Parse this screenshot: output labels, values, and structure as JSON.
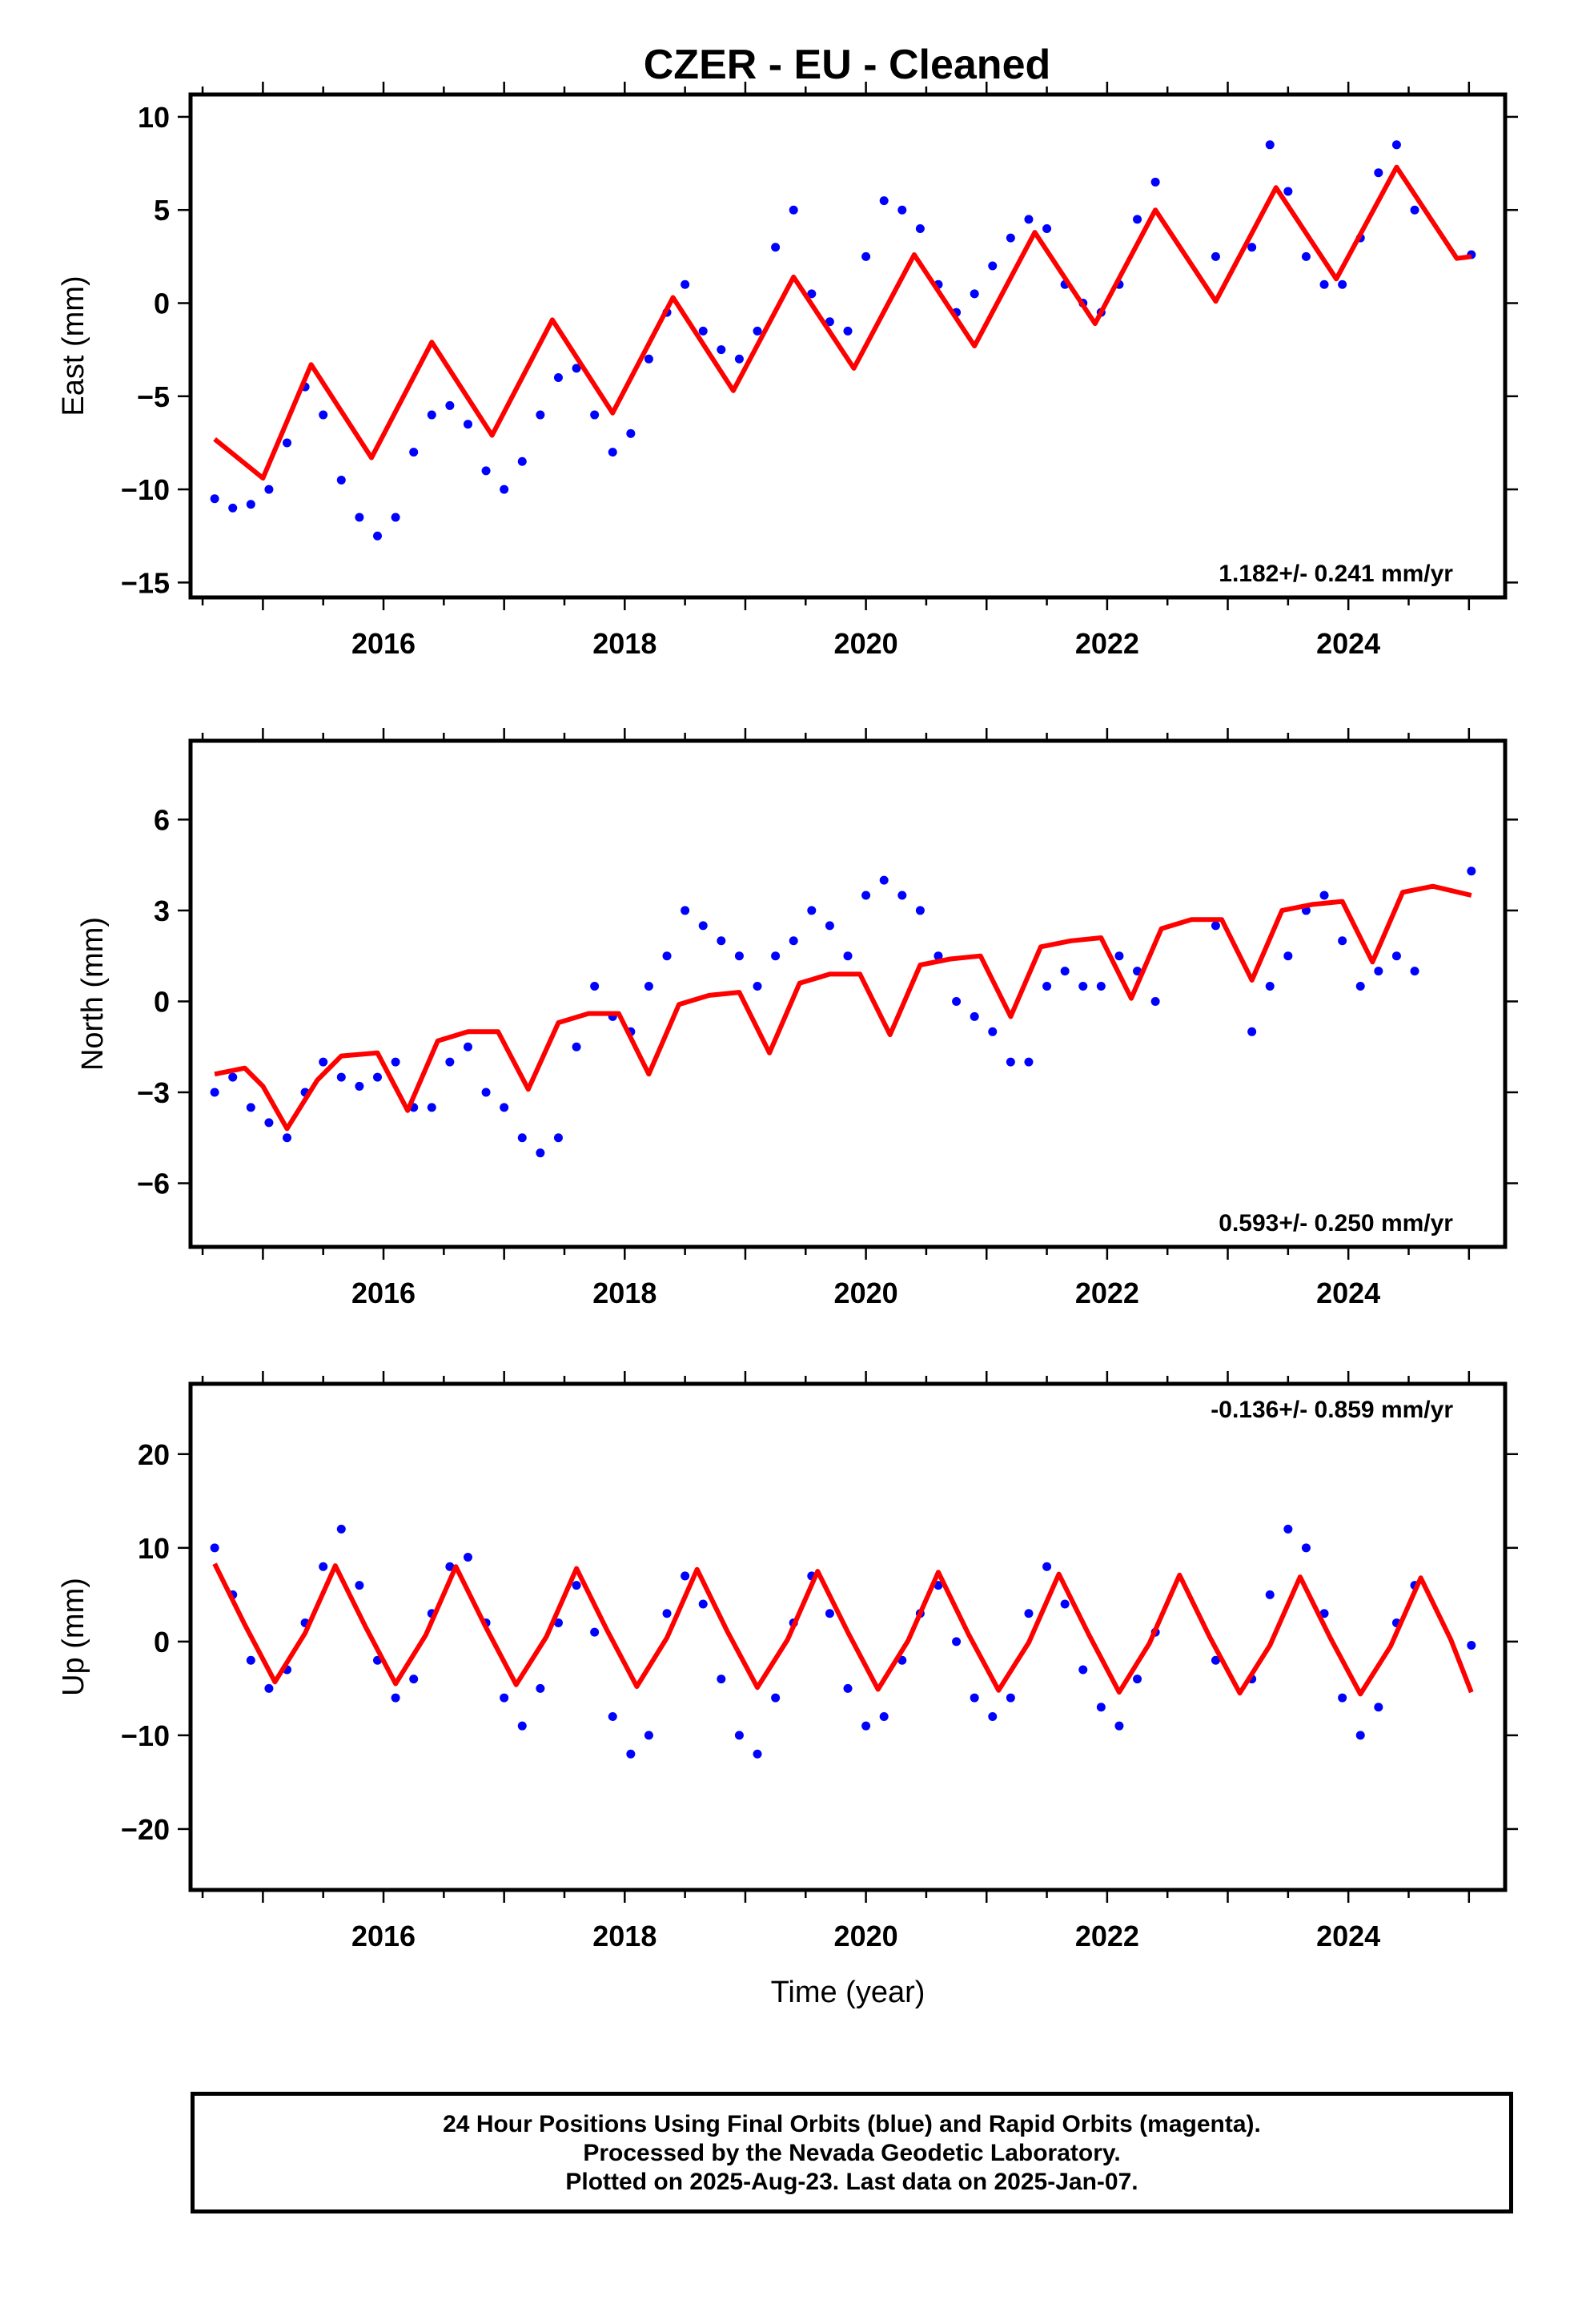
{
  "title": "CZER  - EU - Cleaned",
  "colors": {
    "final_orbits": "#0000ff",
    "model": "#ff0000",
    "frame": "#000000"
  },
  "footer": {
    "line1": "24 Hour Positions Using Final Orbits (blue) and Rapid Orbits (magenta).",
    "line2": "Processed by the Nevada Geodetic Laboratory.",
    "line3": "Plotted on 2025-Aug-23. Last data on 2025-Jan-07."
  },
  "chart_data": [
    {
      "type": "scatter",
      "ylabel": "East (mm)",
      "xlabel": "",
      "rate_label": "1.182+/- 0.241 mm/yr",
      "xlim": [
        2014.4,
        2025.3
      ],
      "ylim": [
        -15.8,
        11.2
      ],
      "xticks": [
        2016,
        2018,
        2020,
        2022,
        2024
      ],
      "xtick_labels": [
        "2016",
        "2018",
        "2020",
        "2022",
        "2024"
      ],
      "yticks": [
        10,
        5,
        0,
        -5,
        -10,
        -15
      ],
      "ytick_labels": [
        "10",
        "5",
        "0",
        "−5",
        "−10",
        "−15"
      ],
      "grid": false,
      "series": [
        {
          "kind": "observations",
          "x": [
            2014.6,
            2014.75,
            2014.9,
            2015.05,
            2015.2,
            2015.35,
            2015.5,
            2015.65,
            2015.8,
            2015.95,
            2016.1,
            2016.25,
            2016.4,
            2016.55,
            2016.7,
            2016.85,
            2017.0,
            2017.15,
            2017.3,
            2017.45,
            2017.6,
            2017.75,
            2017.9,
            2018.05,
            2018.2,
            2018.35,
            2018.5,
            2018.65,
            2018.8,
            2018.95,
            2019.1,
            2019.25,
            2019.4,
            2019.55,
            2019.7,
            2019.85,
            2020.0,
            2020.15,
            2020.3,
            2020.45,
            2020.6,
            2020.75,
            2020.9,
            2021.05,
            2021.2,
            2021.35,
            2021.5,
            2021.65,
            2021.8,
            2021.95,
            2022.1,
            2022.25,
            2022.4,
            2022.9,
            2023.2,
            2023.35,
            2023.5,
            2023.65,
            2023.8,
            2023.95,
            2024.1,
            2024.25,
            2024.4,
            2024.55,
            2025.02
          ],
          "y": [
            -10.5,
            -11,
            -10.8,
            -10,
            -7.5,
            -4.5,
            -6,
            -9.5,
            -11.5,
            -12.5,
            -11.5,
            -8,
            -6,
            -5.5,
            -6.5,
            -9,
            -10,
            -8.5,
            -6,
            -4,
            -3.5,
            -6,
            -8,
            -7,
            -3,
            -0.5,
            1,
            -1.5,
            -2.5,
            -3,
            -1.5,
            3,
            5,
            0.5,
            -1,
            -1.5,
            2.5,
            5.5,
            5,
            4,
            1,
            -0.5,
            0.5,
            2,
            3.5,
            4.5,
            4,
            1,
            0,
            -0.5,
            1,
            4.5,
            6.5,
            2.5,
            3,
            8.5,
            6,
            2.5,
            1,
            1,
            3.5,
            7,
            8.5,
            5,
            2.6
          ]
        },
        {
          "kind": "model",
          "x": [
            2014.6,
            2015.0,
            2015.4,
            2015.9,
            2016.4,
            2016.9,
            2017.4,
            2017.9,
            2018.4,
            2018.9,
            2019.4,
            2019.9,
            2020.4,
            2020.9,
            2021.4,
            2021.9,
            2022.4,
            2022.9,
            2023.4,
            2023.9,
            2024.4,
            2024.9,
            2025.02
          ],
          "y": [
            -7.3,
            -9.4,
            -3.3,
            -8.3,
            -2.1,
            -7.1,
            -0.9,
            -5.9,
            0.3,
            -4.7,
            1.4,
            -3.5,
            2.6,
            -2.3,
            3.8,
            -1.1,
            5.0,
            0.1,
            6.2,
            1.3,
            7.3,
            2.4,
            2.5
          ]
        }
      ]
    },
    {
      "type": "scatter",
      "ylabel": "North (mm)",
      "xlabel": "",
      "rate_label": "0.593+/- 0.250 mm/yr",
      "xlim": [
        2014.4,
        2025.3
      ],
      "ylim": [
        -8.1,
        8.6
      ],
      "xticks": [
        2016,
        2018,
        2020,
        2022,
        2024
      ],
      "xtick_labels": [
        "2016",
        "2018",
        "2020",
        "2022",
        "2024"
      ],
      "yticks": [
        6,
        3,
        0,
        -3,
        -6
      ],
      "ytick_labels": [
        "6",
        "3",
        "0",
        "−3",
        "−6"
      ],
      "grid": false,
      "series": [
        {
          "kind": "observations",
          "x": [
            2014.6,
            2014.75,
            2014.9,
            2015.05,
            2015.2,
            2015.35,
            2015.5,
            2015.65,
            2015.8,
            2015.95,
            2016.1,
            2016.25,
            2016.4,
            2016.55,
            2016.7,
            2016.85,
            2017.0,
            2017.15,
            2017.3,
            2017.45,
            2017.6,
            2017.75,
            2017.9,
            2018.05,
            2018.2,
            2018.35,
            2018.5,
            2018.65,
            2018.8,
            2018.95,
            2019.1,
            2019.25,
            2019.4,
            2019.55,
            2019.7,
            2019.85,
            2020.0,
            2020.15,
            2020.3,
            2020.45,
            2020.6,
            2020.75,
            2020.9,
            2021.05,
            2021.2,
            2021.35,
            2021.5,
            2021.65,
            2021.8,
            2021.95,
            2022.1,
            2022.25,
            2022.4,
            2022.9,
            2023.2,
            2023.35,
            2023.5,
            2023.65,
            2023.8,
            2023.95,
            2024.1,
            2024.25,
            2024.4,
            2024.55,
            2025.02
          ],
          "y": [
            -3,
            -2.5,
            -3.5,
            -4,
            -4.5,
            -3,
            -2,
            -2.5,
            -2.8,
            -2.5,
            -2,
            -3.5,
            -3.5,
            -2,
            -1.5,
            -3,
            -3.5,
            -4.5,
            -5,
            -4.5,
            -1.5,
            0.5,
            -0.5,
            -1,
            0.5,
            1.5,
            3,
            2.5,
            2,
            1.5,
            0.5,
            1.5,
            2,
            3,
            2.5,
            1.5,
            3.5,
            4,
            3.5,
            3,
            1.5,
            0,
            -0.5,
            -1,
            -2,
            -2,
            0.5,
            1,
            0.5,
            0.5,
            1.5,
            1,
            0,
            2.5,
            -1,
            0.5,
            1.5,
            3,
            3.5,
            2,
            0.5,
            1,
            1.5,
            1,
            4.3
          ]
        },
        {
          "kind": "model",
          "x": [
            2014.6,
            2014.85,
            2015.0,
            2015.2,
            2015.45,
            2015.65,
            2015.95,
            2016.2,
            2016.45,
            2016.7,
            2016.95,
            2017.2,
            2017.45,
            2017.7,
            2017.95,
            2018.2,
            2018.45,
            2018.7,
            2018.95,
            2019.2,
            2019.45,
            2019.7,
            2019.95,
            2020.2,
            2020.45,
            2020.7,
            2020.95,
            2021.2,
            2021.45,
            2021.7,
            2021.95,
            2022.2,
            2022.45,
            2022.7,
            2022.95,
            2023.2,
            2023.45,
            2023.7,
            2023.95,
            2024.2,
            2024.45,
            2024.7,
            2025.02
          ],
          "y": [
            -2.4,
            -2.2,
            -2.8,
            -4.2,
            -2.6,
            -1.8,
            -1.7,
            -3.6,
            -1.3,
            -1.0,
            -1.0,
            -2.9,
            -0.7,
            -0.4,
            -0.4,
            -2.4,
            -0.1,
            0.2,
            0.3,
            -1.7,
            0.6,
            0.9,
            0.9,
            -1.1,
            1.2,
            1.4,
            1.5,
            -0.5,
            1.8,
            2.0,
            2.1,
            0.1,
            2.4,
            2.7,
            2.7,
            0.7,
            3.0,
            3.2,
            3.3,
            1.3,
            3.6,
            3.8,
            3.5
          ]
        }
      ]
    },
    {
      "type": "scatter",
      "ylabel": "Up (mm)",
      "xlabel": "Time (year)",
      "rate_label": "-0.136+/- 0.859 mm/yr",
      "xlim": [
        2014.4,
        2025.3
      ],
      "ylim": [
        -26.5,
        27.5
      ],
      "xticks": [
        2016,
        2018,
        2020,
        2022,
        2024
      ],
      "xtick_labels": [
        "2016",
        "2018",
        "2020",
        "2022",
        "2024"
      ],
      "yticks": [
        20,
        10,
        0,
        -10,
        -20
      ],
      "ytick_labels": [
        "20",
        "10",
        "0",
        "−10",
        "−20"
      ],
      "grid": false,
      "series": [
        {
          "kind": "observations",
          "x": [
            2014.6,
            2014.75,
            2014.9,
            2015.05,
            2015.2,
            2015.35,
            2015.5,
            2015.65,
            2015.8,
            2015.95,
            2016.1,
            2016.25,
            2016.4,
            2016.55,
            2016.7,
            2016.85,
            2017.0,
            2017.15,
            2017.3,
            2017.45,
            2017.6,
            2017.75,
            2017.9,
            2018.05,
            2018.2,
            2018.35,
            2018.5,
            2018.65,
            2018.8,
            2018.95,
            2019.1,
            2019.25,
            2019.4,
            2019.55,
            2019.7,
            2019.85,
            2020.0,
            2020.15,
            2020.3,
            2020.45,
            2020.6,
            2020.75,
            2020.9,
            2021.05,
            2021.2,
            2021.35,
            2021.5,
            2021.65,
            2021.8,
            2021.95,
            2022.1,
            2022.25,
            2022.4,
            2022.9,
            2023.2,
            2023.35,
            2023.5,
            2023.65,
            2023.8,
            2023.95,
            2024.1,
            2024.25,
            2024.4,
            2024.55,
            2025.02
          ],
          "y": [
            10,
            5,
            -2,
            -5,
            -3,
            2,
            8,
            12,
            6,
            -2,
            -6,
            -4,
            3,
            8,
            9,
            2,
            -6,
            -9,
            -5,
            2,
            6,
            1,
            -8,
            -12,
            -10,
            3,
            7,
            4,
            -4,
            -10,
            -12,
            -6,
            2,
            7,
            3,
            -5,
            -9,
            -8,
            -2,
            3,
            6,
            0,
            -6,
            -8,
            -6,
            3,
            8,
            4,
            -3,
            -7,
            -9,
            -4,
            1,
            -2,
            -4,
            5,
            12,
            10,
            3,
            -6,
            -10,
            -7,
            2,
            6,
            -0.4
          ]
        },
        {
          "kind": "model",
          "x": [
            2014.6,
            2014.85,
            2015.1,
            2015.35,
            2015.6,
            2015.85,
            2016.1,
            2016.35,
            2016.6,
            2016.85,
            2017.1,
            2017.35,
            2017.6,
            2017.85,
            2018.1,
            2018.35,
            2018.6,
            2018.85,
            2019.1,
            2019.35,
            2019.6,
            2019.85,
            2020.1,
            2020.35,
            2020.6,
            2020.85,
            2021.1,
            2021.35,
            2021.6,
            2021.85,
            2022.1,
            2022.35,
            2022.6,
            2022.85,
            2023.1,
            2023.35,
            2023.6,
            2023.85,
            2024.1,
            2024.35,
            2024.6,
            2024.85,
            2025.02
          ],
          "y": [
            8.3,
            1.8,
            -4.3,
            0.9,
            8.1,
            1.6,
            -4.5,
            0.7,
            8.0,
            1.5,
            -4.6,
            0.5,
            7.8,
            1.3,
            -4.8,
            0.4,
            7.7,
            1.1,
            -4.9,
            0.2,
            7.5,
            1.0,
            -5.1,
            0.1,
            7.4,
            0.8,
            -5.2,
            -0.1,
            7.2,
            0.7,
            -5.4,
            -0.2,
            7.1,
            0.5,
            -5.5,
            -0.4,
            6.9,
            0.4,
            -5.6,
            -0.5,
            6.8,
            0.2,
            -5.4
          ]
        }
      ]
    }
  ]
}
